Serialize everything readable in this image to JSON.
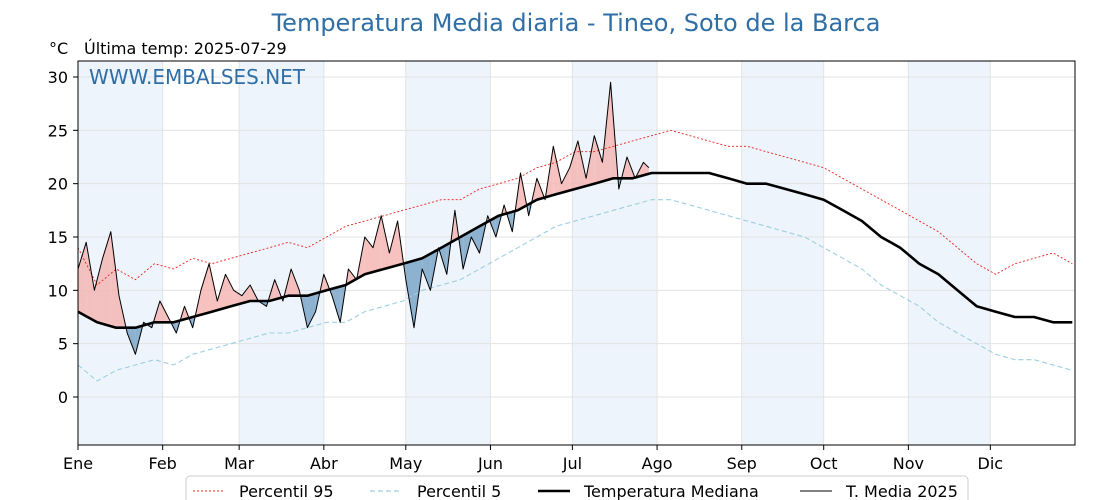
{
  "chart_data": {
    "type": "line",
    "title": "Temperatura Media diaria - Tineo, Soto de la Barca",
    "unit": "°C",
    "last_temp_label": "Última temp: 2025-07-29",
    "watermark": "WWW.EMBALSES.NET",
    "ylim": [
      -4.5,
      31.5
    ],
    "xlim": [
      1,
      366
    ],
    "y_ticks": [
      0,
      5,
      10,
      15,
      20,
      25,
      30
    ],
    "x_ticks": [
      {
        "label": "Ene",
        "day": 1
      },
      {
        "label": "Feb",
        "day": 32
      },
      {
        "label": "Mar",
        "day": 60
      },
      {
        "label": "Abr",
        "day": 91
      },
      {
        "label": "May",
        "day": 121
      },
      {
        "label": "Jun",
        "day": 152
      },
      {
        "label": "Jul",
        "day": 182
      },
      {
        "label": "Ago",
        "day": 213
      },
      {
        "label": "Sep",
        "day": 244
      },
      {
        "label": "Oct",
        "day": 274
      },
      {
        "label": "Nov",
        "day": 305
      },
      {
        "label": "Dic",
        "day": 335
      }
    ],
    "shaded_months": [
      [
        1,
        32
      ],
      [
        60,
        91
      ],
      [
        121,
        152
      ],
      [
        182,
        213
      ],
      [
        244,
        274
      ],
      [
        305,
        335
      ]
    ],
    "grid": true,
    "legend_position": "bottom",
    "series": [
      {
        "name": "Percentil 95",
        "color": "#e8221e",
        "style": "dotted",
        "x": [
          1,
          8,
          15,
          22,
          29,
          36,
          43,
          50,
          57,
          64,
          71,
          78,
          85,
          92,
          99,
          106,
          113,
          120,
          127,
          134,
          141,
          148,
          155,
          162,
          169,
          176,
          183,
          190,
          197,
          204,
          211,
          218,
          225,
          232,
          239,
          246,
          253,
          260,
          267,
          274,
          281,
          288,
          295,
          302,
          309,
          316,
          323,
          330,
          337,
          344,
          351,
          358,
          365
        ],
        "y": [
          14.0,
          10.5,
          12.0,
          11.0,
          12.5,
          12.0,
          13.0,
          12.5,
          13.0,
          13.5,
          14.0,
          14.5,
          14.0,
          15.0,
          16.0,
          16.5,
          17.0,
          17.5,
          18.0,
          18.5,
          18.5,
          19.5,
          20.0,
          20.5,
          21.5,
          22.0,
          23.0,
          23.0,
          23.5,
          24.0,
          24.5,
          25.0,
          24.5,
          24.0,
          23.5,
          23.5,
          23.0,
          22.5,
          22.0,
          21.5,
          20.5,
          19.5,
          18.5,
          17.5,
          16.5,
          15.5,
          14.0,
          12.5,
          11.5,
          12.5,
          13.0,
          13.5,
          12.5
        ]
      },
      {
        "name": "Percentil 5",
        "color": "#9dcfe0",
        "style": "dashed",
        "x": [
          1,
          8,
          15,
          22,
          29,
          36,
          43,
          50,
          57,
          64,
          71,
          78,
          85,
          92,
          99,
          106,
          113,
          120,
          127,
          134,
          141,
          148,
          155,
          162,
          169,
          176,
          183,
          190,
          197,
          204,
          211,
          218,
          225,
          232,
          239,
          246,
          253,
          260,
          267,
          274,
          281,
          288,
          295,
          302,
          309,
          316,
          323,
          330,
          337,
          344,
          351,
          358,
          365
        ],
        "y": [
          3.0,
          1.5,
          2.5,
          3.0,
          3.5,
          3.0,
          4.0,
          4.5,
          5.0,
          5.5,
          6.0,
          6.0,
          6.5,
          7.0,
          7.0,
          8.0,
          8.5,
          9.0,
          10.0,
          10.5,
          11.0,
          12.0,
          13.0,
          14.0,
          15.0,
          16.0,
          16.5,
          17.0,
          17.5,
          18.0,
          18.5,
          18.5,
          18.0,
          17.5,
          17.0,
          16.5,
          16.0,
          15.5,
          15.0,
          14.0,
          13.0,
          12.0,
          10.5,
          9.5,
          8.5,
          7.0,
          6.0,
          5.0,
          4.0,
          3.5,
          3.5,
          3.0,
          2.5
        ]
      },
      {
        "name": "Temperatura Mediana",
        "color": "#000000",
        "style": "thick",
        "x": [
          1,
          8,
          15,
          22,
          29,
          36,
          43,
          50,
          57,
          64,
          71,
          78,
          85,
          92,
          99,
          106,
          113,
          120,
          127,
          134,
          141,
          148,
          155,
          162,
          169,
          176,
          183,
          190,
          197,
          204,
          211,
          218,
          225,
          232,
          239,
          246,
          253,
          260,
          267,
          274,
          281,
          288,
          295,
          302,
          309,
          316,
          323,
          330,
          337,
          344,
          351,
          358,
          365
        ],
        "y": [
          8.0,
          7.0,
          6.5,
          6.5,
          7.0,
          7.0,
          7.5,
          8.0,
          8.5,
          9.0,
          9.0,
          9.5,
          9.5,
          10.0,
          10.5,
          11.5,
          12.0,
          12.5,
          13.0,
          14.0,
          15.0,
          16.0,
          17.0,
          17.5,
          18.5,
          19.0,
          19.5,
          20.0,
          20.5,
          20.5,
          21.0,
          21.0,
          21.0,
          21.0,
          20.5,
          20.0,
          20.0,
          19.5,
          19.0,
          18.5,
          17.5,
          16.5,
          15.0,
          14.0,
          12.5,
          11.5,
          10.0,
          8.5,
          8.0,
          7.5,
          7.5,
          7.0,
          7.0
        ]
      },
      {
        "name": "T. Media 2025",
        "color": "#000000",
        "style": "thin",
        "x": [
          1,
          4,
          7,
          10,
          13,
          16,
          19,
          22,
          25,
          28,
          31,
          34,
          37,
          40,
          43,
          46,
          49,
          52,
          55,
          58,
          61,
          64,
          67,
          70,
          73,
          76,
          79,
          82,
          85,
          88,
          91,
          94,
          97,
          100,
          103,
          106,
          109,
          112,
          115,
          118,
          121,
          124,
          127,
          130,
          133,
          136,
          139,
          142,
          145,
          148,
          151,
          154,
          157,
          160,
          163,
          166,
          169,
          172,
          175,
          178,
          181,
          184,
          187,
          190,
          193,
          196,
          199,
          202,
          205,
          208,
          210
        ],
        "y": [
          12.0,
          14.5,
          10.0,
          13.0,
          15.5,
          9.5,
          6.0,
          4.0,
          7.0,
          6.5,
          9.0,
          7.5,
          6.0,
          8.5,
          6.5,
          10.0,
          12.5,
          9.0,
          11.5,
          10.0,
          9.5,
          10.5,
          9.0,
          8.5,
          11.0,
          9.0,
          12.0,
          10.0,
          6.5,
          8.0,
          11.5,
          9.5,
          7.0,
          12.0,
          11.0,
          15.0,
          14.0,
          17.0,
          13.5,
          16.5,
          11.0,
          6.5,
          12.0,
          10.0,
          14.0,
          11.5,
          17.5,
          12.0,
          15.0,
          13.5,
          17.0,
          15.0,
          18.0,
          15.5,
          21.0,
          17.0,
          20.5,
          18.5,
          23.5,
          20.0,
          21.5,
          24.0,
          20.5,
          24.5,
          22.0,
          29.5,
          19.5,
          22.5,
          20.5,
          22.0,
          21.5
        ]
      }
    ],
    "legend": [
      "Percentil 95",
      "Percentil 5",
      "Temperatura Mediana",
      "T. Media 2025"
    ]
  }
}
